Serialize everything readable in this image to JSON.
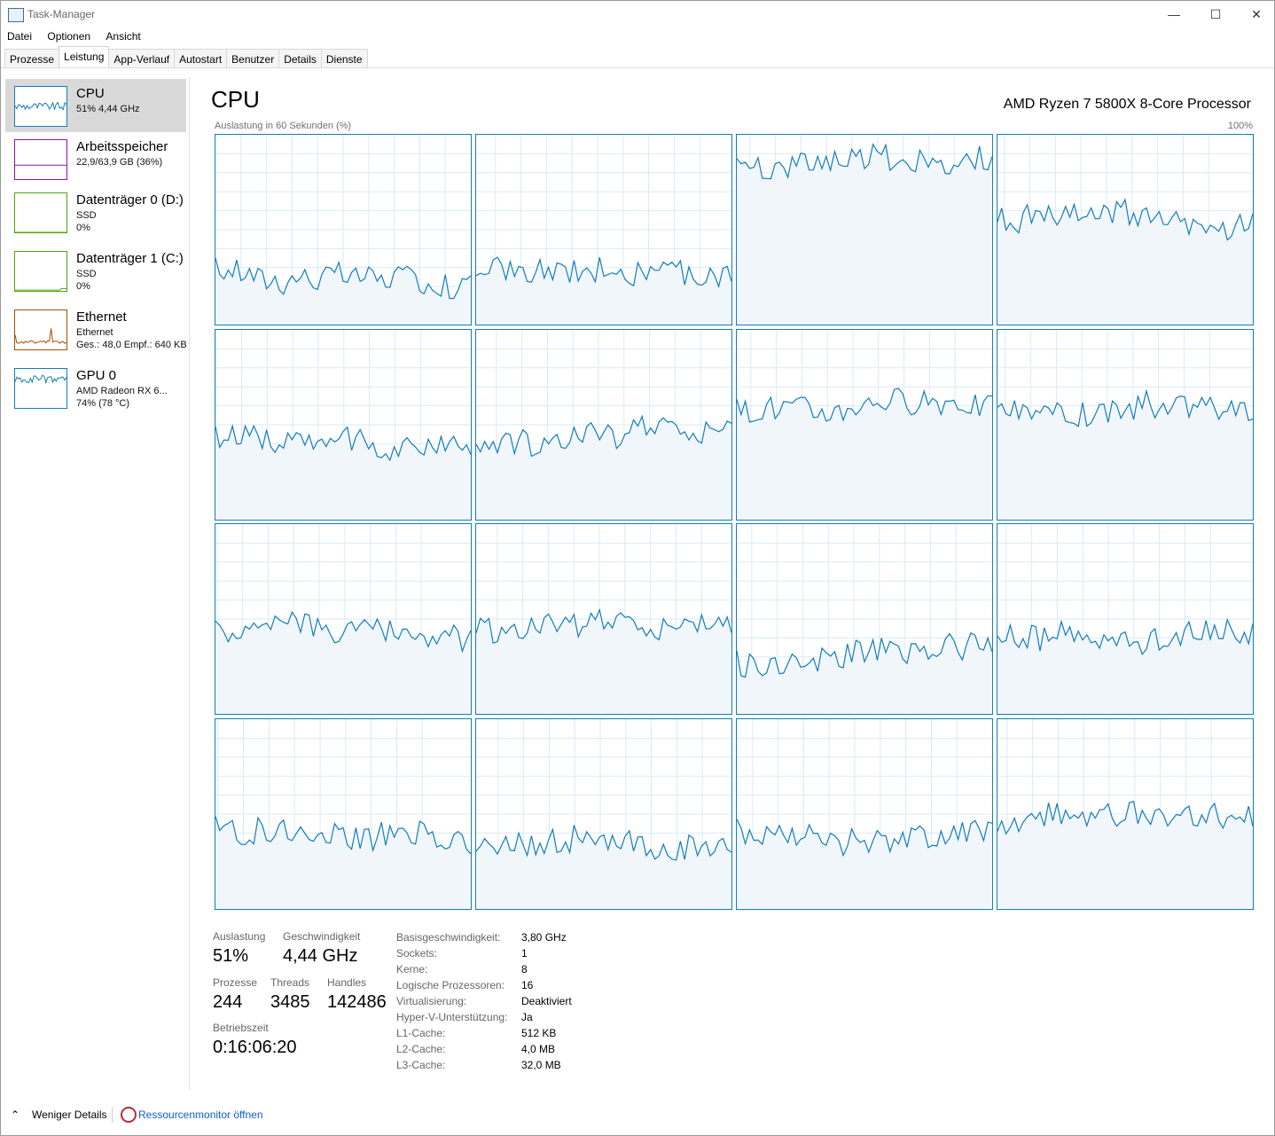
{
  "window": {
    "title": "Task-Manager",
    "minimize": "—",
    "maximize": "☐",
    "close": "✕"
  },
  "menu": [
    "Datei",
    "Optionen",
    "Ansicht"
  ],
  "tabs": [
    "Prozesse",
    "Leistung",
    "App-Verlauf",
    "Autostart",
    "Benutzer",
    "Details",
    "Dienste"
  ],
  "active_tab": "Leistung",
  "sidebar": {
    "items": [
      {
        "name": "CPU",
        "line1": "51% 4,44 GHz",
        "line2": "",
        "color": "#117dbb"
      },
      {
        "name": "Arbeitsspeicher",
        "line1": "22,9/63,9 GB (36%)",
        "line2": "",
        "color": "#8b12ae"
      },
      {
        "name": "Datenträger 0 (D:)",
        "line1": "SSD",
        "line2": "0%",
        "color": "#4da60c"
      },
      {
        "name": "Datenträger 1 (C:)",
        "line1": "SSD",
        "line2": "0%",
        "color": "#4da60c"
      },
      {
        "name": "Ethernet",
        "line1": "Ethernet",
        "line2": "Ges.: 48,0  Empf.: 640 KB",
        "color": "#a74f01"
      },
      {
        "name": "GPU 0",
        "line1": "AMD Radeon RX 6...",
        "line2": "74% (78 °C)",
        "color": "#117dbb"
      }
    ]
  },
  "main": {
    "title": "CPU",
    "processor": "AMD Ryzen 7 5800X 8-Core Processor",
    "graph_label": "Auslastung in 60 Sekunden (%)",
    "graph_max": "100%",
    "graph_color": "#117dbb",
    "core_levels_percent": [
      28,
      28,
      82,
      55,
      42,
      42,
      58,
      60,
      42,
      42,
      28,
      42,
      42,
      30,
      42,
      42
    ]
  },
  "stats": {
    "auslastung_label": "Auslastung",
    "auslastung": "51%",
    "geschwindigkeit_label": "Geschwindigkeit",
    "geschwindigkeit": "4,44 GHz",
    "prozesse_label": "Prozesse",
    "prozesse": "244",
    "threads_label": "Threads",
    "threads": "3485",
    "handles_label": "Handles",
    "handles": "142486",
    "betriebszeit_label": "Betriebszeit",
    "betriebszeit": "0:16:06:20"
  },
  "specs": [
    {
      "k": "Basisgeschwindigkeit:",
      "v": "3,80 GHz"
    },
    {
      "k": "Sockets:",
      "v": "1"
    },
    {
      "k": "Kerne:",
      "v": "8"
    },
    {
      "k": "Logische Prozessoren:",
      "v": "16"
    },
    {
      "k": "Virtualisierung:",
      "v": "Deaktiviert"
    },
    {
      "k": "Hyper-V-Unterstützung:",
      "v": "Ja"
    },
    {
      "k": "L1-Cache:",
      "v": "512 KB"
    },
    {
      "k": "L2-Cache:",
      "v": "4,0 MB"
    },
    {
      "k": "L3-Cache:",
      "v": "32,0 MB"
    }
  ],
  "footer": {
    "fewer_details": "Weniger Details",
    "resource_monitor": "Ressourcenmonitor öffnen",
    "chevron": "⌃"
  }
}
